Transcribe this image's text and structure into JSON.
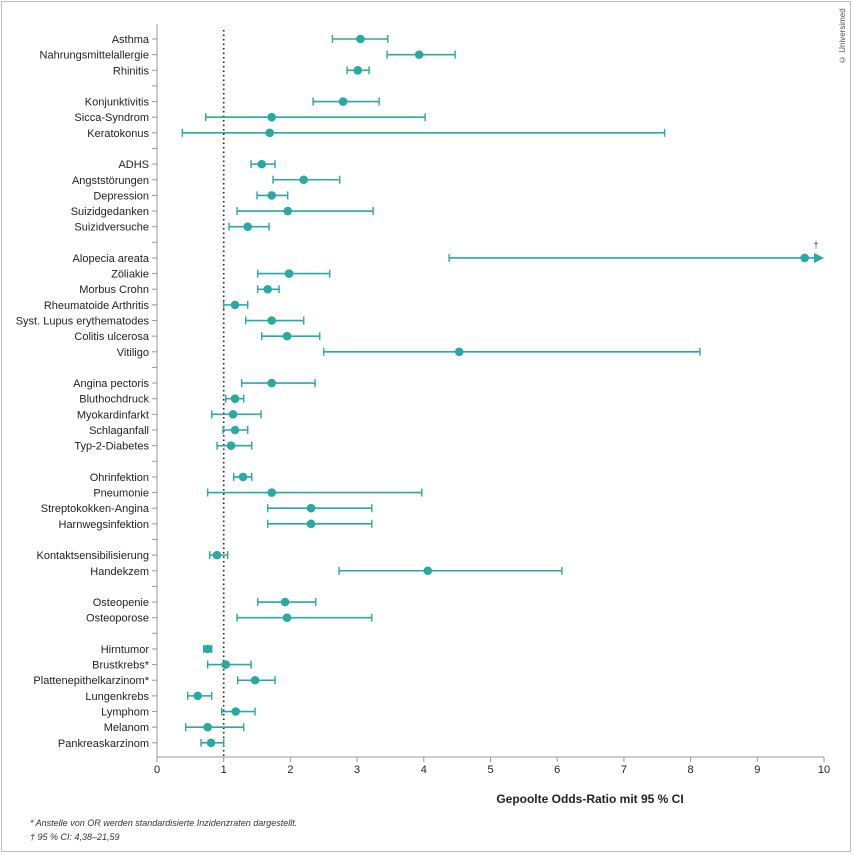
{
  "copyright": "© Universimed",
  "footnotes": [
    "* Anstelle von OR werden standardisierte Inzidenzraten dargestellt.",
    "† 95 % CI: 4,38–21,59"
  ],
  "chart_data": {
    "type": "forest",
    "xlabel": "Gepoolte Odds-Ratio mit 95 % CI",
    "xlim": [
      0,
      10
    ],
    "xticks": [
      "0",
      "1",
      "2",
      "3",
      "4",
      "5",
      "6",
      "7",
      "8",
      "9",
      "10"
    ],
    "reference_line": 1,
    "grid": false,
    "color": "#2aa8a3",
    "groups": [
      [
        {
          "label": "Asthma",
          "or": 3.05,
          "lo": 2.63,
          "hi": 3.46
        },
        {
          "label": "Nahrungsmittelallergie",
          "or": 3.93,
          "lo": 3.45,
          "hi": 4.47
        },
        {
          "label": "Rhinitis",
          "or": 3.01,
          "lo": 2.85,
          "hi": 3.18
        }
      ],
      [
        {
          "label": "Konjunktivitis",
          "or": 2.79,
          "lo": 2.34,
          "hi": 3.33
        },
        {
          "label": "Sicca-Syndrom",
          "or": 1.72,
          "lo": 0.73,
          "hi": 4.02
        },
        {
          "label": "Keratokonus",
          "or": 1.69,
          "lo": 0.38,
          "hi": 7.61
        }
      ],
      [
        {
          "label": "ADHS",
          "or": 1.57,
          "lo": 1.41,
          "hi": 1.77
        },
        {
          "label": "Angststörungen",
          "or": 2.2,
          "lo": 1.74,
          "hi": 2.74
        },
        {
          "label": "Depression",
          "or": 1.72,
          "lo": 1.5,
          "hi": 1.96
        },
        {
          "label": "Suizidgedanken",
          "or": 1.96,
          "lo": 1.2,
          "hi": 3.24
        },
        {
          "label": "Suizidversuche",
          "or": 1.36,
          "lo": 1.08,
          "hi": 1.68
        }
      ],
      [
        {
          "label": "Alopecia areata",
          "or": 9.71,
          "lo": 4.38,
          "hi": 21.59,
          "note": "†"
        },
        {
          "label": "Zöliakie",
          "or": 1.98,
          "lo": 1.51,
          "hi": 2.59
        },
        {
          "label": "Morbus Crohn",
          "or": 1.66,
          "lo": 1.51,
          "hi": 1.83
        },
        {
          "label": "Rheumatoide Arthritis",
          "or": 1.17,
          "lo": 1.0,
          "hi": 1.36
        },
        {
          "label": "Syst. Lupus erythematodes",
          "or": 1.72,
          "lo": 1.33,
          "hi": 2.2
        },
        {
          "label": "Colitis ulcerosa",
          "or": 1.95,
          "lo": 1.57,
          "hi": 2.44
        },
        {
          "label": "Vitiligo",
          "or": 4.53,
          "lo": 2.5,
          "hi": 8.14
        }
      ],
      [
        {
          "label": "Angina pectoris",
          "or": 1.72,
          "lo": 1.27,
          "hi": 2.37
        },
        {
          "label": "Bluthochdruck",
          "or": 1.17,
          "lo": 1.03,
          "hi": 1.3
        },
        {
          "label": "Myokardinfarkt",
          "or": 1.14,
          "lo": 0.82,
          "hi": 1.56
        },
        {
          "label": "Schlaganfall",
          "or": 1.17,
          "lo": 0.99,
          "hi": 1.36
        },
        {
          "label": "Typ-2-Diabetes",
          "or": 1.11,
          "lo": 0.9,
          "hi": 1.42
        }
      ],
      [
        {
          "label": "Ohrinfektion",
          "or": 1.29,
          "lo": 1.15,
          "hi": 1.42
        },
        {
          "label": "Pneumonie",
          "or": 1.72,
          "lo": 0.76,
          "hi": 3.97
        },
        {
          "label": "Streptokokken-Angina",
          "or": 2.31,
          "lo": 1.66,
          "hi": 3.22
        },
        {
          "label": "Harnwegsinfektion",
          "or": 2.31,
          "lo": 1.66,
          "hi": 3.22
        }
      ],
      [
        {
          "label": "Kontaktsensibilisierung",
          "or": 0.9,
          "lo": 0.79,
          "hi": 1.06
        },
        {
          "label": "Handekzem",
          "or": 4.06,
          "lo": 2.73,
          "hi": 6.07
        }
      ],
      [
        {
          "label": "Osteopenie",
          "or": 1.92,
          "lo": 1.51,
          "hi": 2.38
        },
        {
          "label": "Osteoporose",
          "or": 1.95,
          "lo": 1.2,
          "hi": 3.22
        }
      ],
      [
        {
          "label": "Hirntumor",
          "or": 0.76,
          "lo": 0.7,
          "hi": 0.82
        },
        {
          "label": "Brustkrebs*",
          "or": 1.03,
          "lo": 0.76,
          "hi": 1.41
        },
        {
          "label": "Plattenepithelkarzinom*",
          "or": 1.47,
          "lo": 1.21,
          "hi": 1.77
        },
        {
          "label": "Lungenkrebs",
          "or": 0.61,
          "lo": 0.46,
          "hi": 0.82
        },
        {
          "label": "Lymphom",
          "or": 1.18,
          "lo": 0.97,
          "hi": 1.47
        },
        {
          "label": "Melanom",
          "or": 0.76,
          "lo": 0.43,
          "hi": 1.3
        },
        {
          "label": "Pankreaskarzinom",
          "or": 0.81,
          "lo": 0.66,
          "hi": 1.0
        }
      ]
    ]
  }
}
